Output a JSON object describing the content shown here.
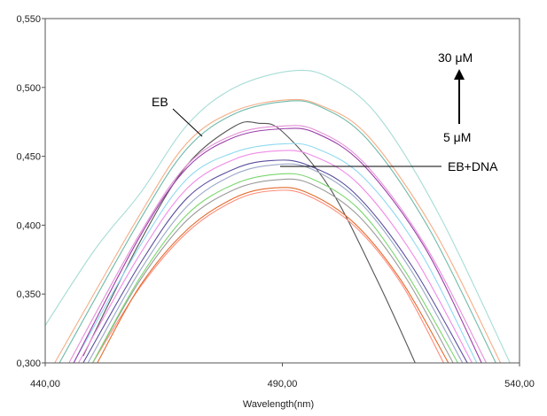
{
  "chart_data": {
    "type": "line",
    "xlabel": "Wavelength(nm)",
    "ylabel": "",
    "xlim": [
      440,
      540
    ],
    "ylim": [
      0.3,
      0.55
    ],
    "x_ticks": [
      {
        "value": 440,
        "label": "440,00"
      },
      {
        "value": 490,
        "label": "490,00"
      },
      {
        "value": 540,
        "label": "540,00"
      }
    ],
    "y_ticks": [
      {
        "value": 0.3,
        "label": "0,300"
      },
      {
        "value": 0.35,
        "label": "0,350"
      },
      {
        "value": 0.4,
        "label": "0,400"
      },
      {
        "value": 0.45,
        "label": "0,450"
      },
      {
        "value": 0.5,
        "label": "0,500"
      },
      {
        "value": 0.55,
        "label": "0,550"
      }
    ],
    "grid": false,
    "legend": "none",
    "annotations": {
      "eb_label": "EB",
      "ebdna_label": "EB+DNA",
      "conc_high": "30 μM",
      "conc_low": "5 μM"
    },
    "series": [
      {
        "color": "#555555",
        "points": [
          [
            448,
            0.305
          ],
          [
            460,
            0.388
          ],
          [
            470,
            0.444
          ],
          [
            480,
            0.472
          ],
          [
            485,
            0.474
          ],
          [
            490,
            0.468
          ],
          [
            500,
            0.427
          ],
          [
            510,
            0.36
          ],
          [
            518,
            0.3
          ]
        ]
      },
      {
        "color": "#ff8c7a",
        "points": [
          [
            450,
            0.3
          ],
          [
            460,
            0.355
          ],
          [
            470,
            0.395
          ],
          [
            480,
            0.418
          ],
          [
            488,
            0.425
          ],
          [
            495,
            0.422
          ],
          [
            505,
            0.4
          ],
          [
            515,
            0.358
          ],
          [
            524,
            0.3
          ]
        ]
      },
      {
        "color": "#e36b2e",
        "points": [
          [
            451,
            0.3
          ],
          [
            460,
            0.356
          ],
          [
            470,
            0.397
          ],
          [
            480,
            0.42
          ],
          [
            488,
            0.427
          ],
          [
            495,
            0.424
          ],
          [
            505,
            0.402
          ],
          [
            515,
            0.36
          ],
          [
            525,
            0.3
          ]
        ]
      },
      {
        "color": "#9b9b9b",
        "points": [
          [
            450,
            0.3
          ],
          [
            460,
            0.36
          ],
          [
            470,
            0.404
          ],
          [
            480,
            0.426
          ],
          [
            489,
            0.433
          ],
          [
            496,
            0.43
          ],
          [
            506,
            0.407
          ],
          [
            516,
            0.362
          ],
          [
            526,
            0.3
          ]
        ]
      },
      {
        "color": "#7ad66e",
        "points": [
          [
            450,
            0.3
          ],
          [
            460,
            0.362
          ],
          [
            470,
            0.408
          ],
          [
            480,
            0.43
          ],
          [
            489,
            0.437
          ],
          [
            496,
            0.434
          ],
          [
            506,
            0.412
          ],
          [
            516,
            0.366
          ],
          [
            527,
            0.3
          ]
        ]
      },
      {
        "color": "#9aa7c8",
        "points": [
          [
            449,
            0.3
          ],
          [
            460,
            0.367
          ],
          [
            470,
            0.414
          ],
          [
            480,
            0.437
          ],
          [
            489,
            0.444
          ],
          [
            496,
            0.441
          ],
          [
            506,
            0.418
          ],
          [
            517,
            0.368
          ],
          [
            528,
            0.3
          ]
        ]
      },
      {
        "color": "#5a4e9e",
        "points": [
          [
            448,
            0.3
          ],
          [
            460,
            0.372
          ],
          [
            470,
            0.42
          ],
          [
            480,
            0.441
          ],
          [
            488,
            0.447
          ],
          [
            495,
            0.444
          ],
          [
            505,
            0.424
          ],
          [
            517,
            0.372
          ],
          [
            529,
            0.3
          ]
        ]
      },
      {
        "color": "#f08ce6",
        "points": [
          [
            447,
            0.3
          ],
          [
            460,
            0.379
          ],
          [
            470,
            0.427
          ],
          [
            480,
            0.448
          ],
          [
            489,
            0.454
          ],
          [
            496,
            0.451
          ],
          [
            506,
            0.43
          ],
          [
            518,
            0.376
          ],
          [
            530,
            0.3
          ]
        ]
      },
      {
        "color": "#8fd9f0",
        "points": [
          [
            446,
            0.3
          ],
          [
            460,
            0.385
          ],
          [
            470,
            0.434
          ],
          [
            480,
            0.453
          ],
          [
            490,
            0.459
          ],
          [
            497,
            0.456
          ],
          [
            507,
            0.435
          ],
          [
            519,
            0.381
          ],
          [
            531,
            0.3
          ]
        ]
      },
      {
        "color": "#9a3fa8",
        "points": [
          [
            446,
            0.3
          ],
          [
            460,
            0.392
          ],
          [
            470,
            0.442
          ],
          [
            480,
            0.464
          ],
          [
            490,
            0.47
          ],
          [
            497,
            0.467
          ],
          [
            507,
            0.444
          ],
          [
            520,
            0.384
          ],
          [
            532,
            0.3
          ]
        ]
      },
      {
        "color": "#e58fd8",
        "points": [
          [
            445,
            0.3
          ],
          [
            460,
            0.394
          ],
          [
            470,
            0.444
          ],
          [
            480,
            0.466
          ],
          [
            490,
            0.472
          ],
          [
            497,
            0.469
          ],
          [
            507,
            0.446
          ],
          [
            520,
            0.386
          ],
          [
            533,
            0.3
          ]
        ]
      },
      {
        "color": "#6fb9a8",
        "points": [
          [
            443,
            0.3
          ],
          [
            460,
            0.404
          ],
          [
            470,
            0.456
          ],
          [
            480,
            0.481
          ],
          [
            491,
            0.49
          ],
          [
            498,
            0.486
          ],
          [
            508,
            0.462
          ],
          [
            521,
            0.397
          ],
          [
            535,
            0.3
          ]
        ]
      },
      {
        "color": "#f5ad86",
        "points": [
          [
            442,
            0.3
          ],
          [
            460,
            0.408
          ],
          [
            470,
            0.46
          ],
          [
            480,
            0.483
          ],
          [
            491,
            0.491
          ],
          [
            498,
            0.487
          ],
          [
            508,
            0.465
          ],
          [
            522,
            0.396
          ],
          [
            536,
            0.3
          ]
        ]
      },
      {
        "color": "#a8dcd6",
        "points": [
          [
            435,
            0.3
          ],
          [
            450,
            0.38
          ],
          [
            460,
            0.423
          ],
          [
            470,
            0.473
          ],
          [
            480,
            0.5
          ],
          [
            492,
            0.512
          ],
          [
            500,
            0.507
          ],
          [
            510,
            0.48
          ],
          [
            523,
            0.408
          ],
          [
            538,
            0.3
          ]
        ]
      }
    ]
  }
}
